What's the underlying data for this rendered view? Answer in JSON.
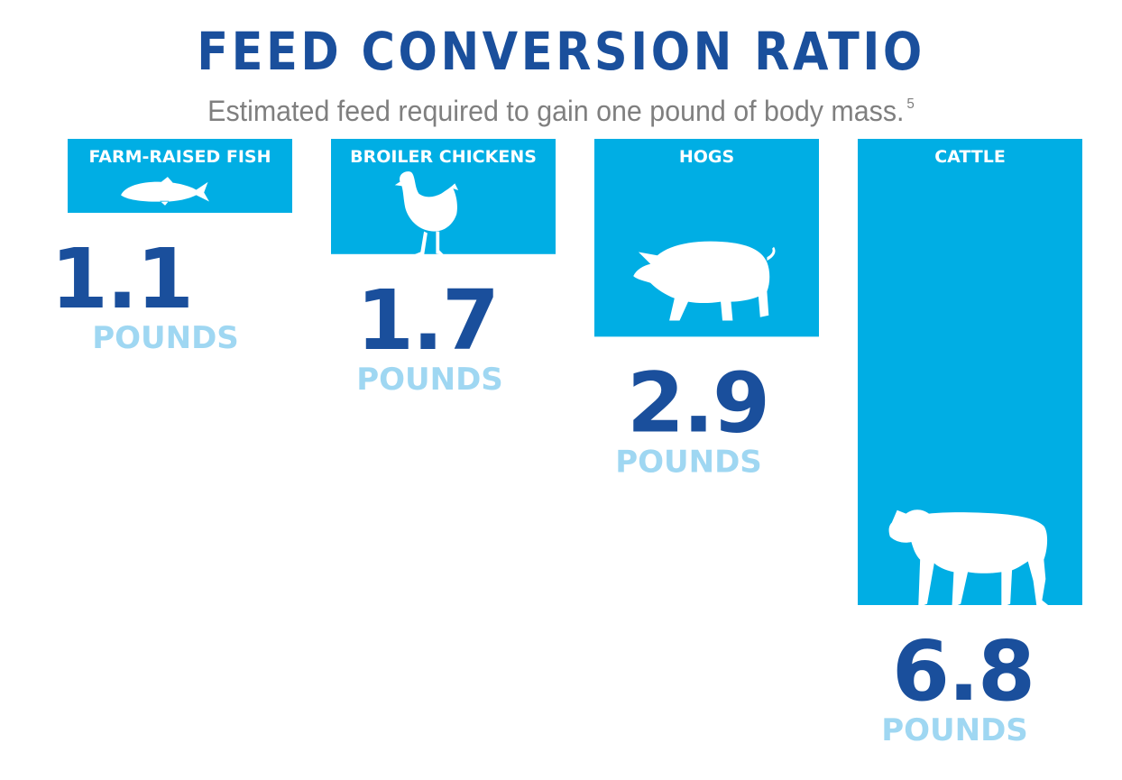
{
  "chart_data": {
    "type": "bar",
    "title": "FEED CONVERSION RATIO",
    "subtitle": "Estimated feed required to gain one pound of body mass.",
    "subtitle_footnote": "5",
    "categories": [
      "FARM-RAISED FISH",
      "BROILER CHICKENS",
      "HOGS",
      "CATTLE"
    ],
    "values": [
      1.1,
      1.7,
      2.9,
      6.8
    ],
    "value_labels": [
      "1.1",
      "1.7",
      "2.9",
      "6.8"
    ],
    "unit": "POUNDS",
    "icons": [
      "fish-icon",
      "chicken-icon",
      "pig-icon",
      "cow-icon"
    ],
    "orientation": "vertical-hanging",
    "ylim": [
      0,
      6.8
    ],
    "grid": false,
    "legend": "none",
    "colors": {
      "bar": "#00aee4",
      "value_text": "#1a4f9c",
      "unit_text": "#9fd7f2",
      "title": "#1a4f9c",
      "subtitle": "#7f7f7f"
    }
  }
}
